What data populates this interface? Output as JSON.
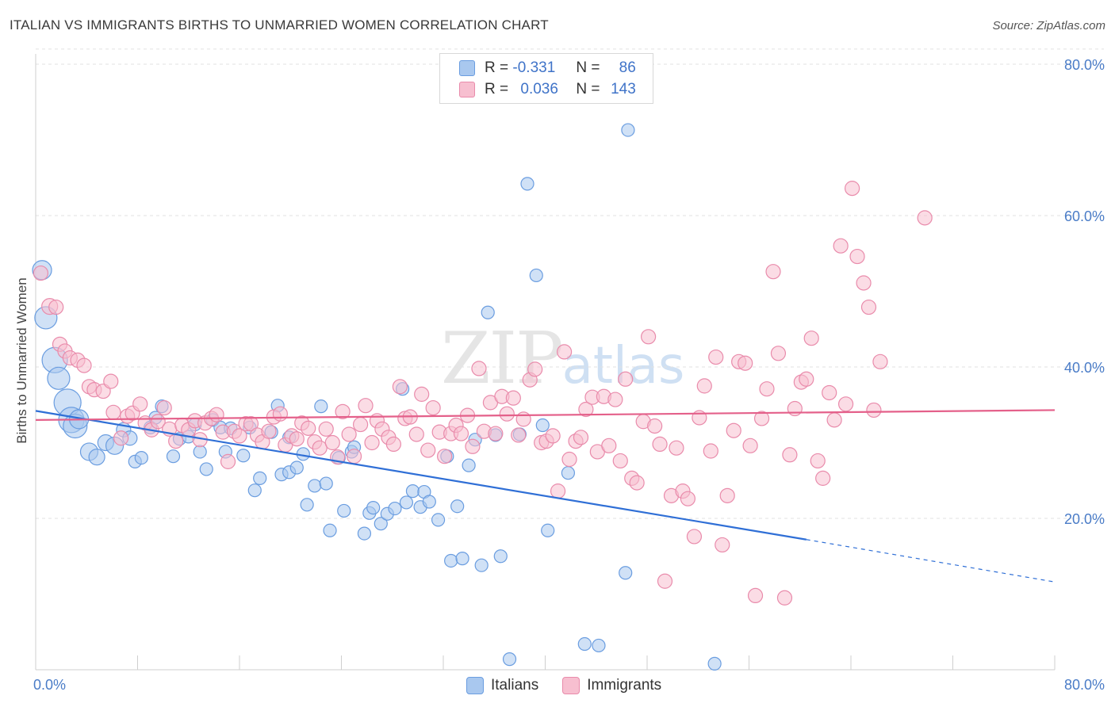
{
  "title": "ITALIAN VS IMMIGRANTS BIRTHS TO UNMARRIED WOMEN CORRELATION CHART",
  "source": "Source: ZipAtlas.com",
  "watermark": {
    "zip": "ZIP",
    "atlas": "atlas"
  },
  "legend": {
    "italians": {
      "r_label": "R =",
      "r": "-0.331",
      "n_label": "N =",
      "n": "86"
    },
    "immigrants": {
      "r_label": "R =",
      "r": "0.036",
      "n_label": "N =",
      "n": "143"
    }
  },
  "bottom_legend": {
    "italians": "Italians",
    "immigrants": "Immigrants"
  },
  "colors": {
    "blue_fill": "#a9c8ef",
    "blue_stroke": "#6a9de0",
    "blue_line": "#2f6fd6",
    "pink_fill": "#f7bfd0",
    "pink_stroke": "#e98bab",
    "pink_line": "#e4608a",
    "grid": "#e2e2e2",
    "axis_text": "#4a7cc7"
  },
  "chart_data": {
    "type": "scatter",
    "title": "ITALIAN VS IMMIGRANTS BIRTHS TO UNMARRIED WOMEN CORRELATION CHART",
    "xlabel": "",
    "ylabel": "Births to Unmarried Women",
    "xlim": [
      0,
      80
    ],
    "ylim": [
      0,
      84
    ],
    "x_ticks_labels": [
      "0.0%",
      "80.0%"
    ],
    "y_ticks": [
      20,
      40,
      60,
      80
    ],
    "y_tick_labels": [
      "20.0%",
      "40.0%",
      "60.0%",
      "80.0%"
    ],
    "grid": "dashed horizontal",
    "series": [
      {
        "name": "Italians",
        "r": -0.331,
        "n": 86,
        "trend": {
          "x0": 0,
          "y0": 34.2,
          "x1": 60.5,
          "y1": 17.2,
          "dashed_to_x": 80,
          "dashed_to_y": 11.6
        },
        "points": [
          [
            0.5,
            52.8,
            12
          ],
          [
            0.8,
            46.5,
            14
          ],
          [
            1.5,
            40.9,
            16
          ],
          [
            1.8,
            38.5,
            14
          ],
          [
            2.5,
            35.3,
            17
          ],
          [
            2.8,
            33.0,
            16
          ],
          [
            3.1,
            32.2,
            15
          ],
          [
            3.4,
            33.1,
            12
          ],
          [
            4.2,
            28.8,
            11
          ],
          [
            4.8,
            28.1,
            10
          ],
          [
            5.5,
            30.0,
            10
          ],
          [
            6.2,
            29.6,
            11
          ],
          [
            6.9,
            31.7,
            9
          ],
          [
            7.4,
            30.6,
            9
          ],
          [
            7.8,
            27.5,
            8
          ],
          [
            8.3,
            28.0,
            8
          ],
          [
            9.0,
            32.0,
            8
          ],
          [
            9.4,
            33.3,
            8
          ],
          [
            9.9,
            34.8,
            8
          ],
          [
            10.8,
            28.2,
            8
          ],
          [
            11.3,
            30.5,
            8
          ],
          [
            12.0,
            30.8,
            8
          ],
          [
            12.5,
            32.4,
            8
          ],
          [
            12.9,
            28.8,
            8
          ],
          [
            13.4,
            26.5,
            8
          ],
          [
            13.9,
            33.0,
            8
          ],
          [
            14.5,
            32.0,
            8
          ],
          [
            14.9,
            28.8,
            8
          ],
          [
            15.3,
            31.9,
            8
          ],
          [
            16.3,
            28.3,
            8
          ],
          [
            16.8,
            32.0,
            8
          ],
          [
            17.2,
            23.7,
            8
          ],
          [
            17.6,
            25.3,
            8
          ],
          [
            18.5,
            31.4,
            8
          ],
          [
            19.0,
            34.9,
            8
          ],
          [
            19.3,
            25.8,
            8
          ],
          [
            19.9,
            26.1,
            8
          ],
          [
            19.9,
            30.7,
            8
          ],
          [
            20.5,
            26.7,
            8
          ],
          [
            21.0,
            28.5,
            8
          ],
          [
            21.3,
            21.8,
            8
          ],
          [
            21.9,
            24.3,
            8
          ],
          [
            22.4,
            34.8,
            8
          ],
          [
            22.8,
            24.6,
            8
          ],
          [
            23.1,
            18.4,
            8
          ],
          [
            23.8,
            28.0,
            8
          ],
          [
            24.2,
            21.0,
            8
          ],
          [
            24.8,
            28.8,
            8
          ],
          [
            25.0,
            29.4,
            8
          ],
          [
            25.8,
            18.0,
            8
          ],
          [
            26.2,
            20.7,
            8
          ],
          [
            26.5,
            21.4,
            8
          ],
          [
            27.1,
            19.3,
            8
          ],
          [
            27.6,
            20.6,
            8
          ],
          [
            28.2,
            21.3,
            8
          ],
          [
            28.8,
            37.1,
            8
          ],
          [
            29.1,
            22.1,
            8
          ],
          [
            29.6,
            23.6,
            8
          ],
          [
            30.2,
            21.5,
            8
          ],
          [
            30.5,
            23.5,
            8
          ],
          [
            30.9,
            22.2,
            8
          ],
          [
            31.6,
            19.8,
            8
          ],
          [
            32.3,
            28.2,
            8
          ],
          [
            32.6,
            14.4,
            8
          ],
          [
            33.1,
            21.6,
            8
          ],
          [
            33.5,
            14.7,
            8
          ],
          [
            34.0,
            27.0,
            8
          ],
          [
            34.5,
            30.4,
            8
          ],
          [
            35.0,
            13.8,
            8
          ],
          [
            35.5,
            47.2,
            8
          ],
          [
            36.1,
            31.0,
            8
          ],
          [
            36.5,
            15.0,
            8
          ],
          [
            37.2,
            1.4,
            8
          ],
          [
            38.0,
            31.1,
            8
          ],
          [
            38.6,
            64.2,
            8
          ],
          [
            39.3,
            52.1,
            8
          ],
          [
            39.8,
            32.3,
            8
          ],
          [
            40.2,
            18.4,
            8
          ],
          [
            41.8,
            26.0,
            8
          ],
          [
            43.1,
            3.4,
            8
          ],
          [
            44.2,
            3.2,
            8
          ],
          [
            46.3,
            12.8,
            8
          ],
          [
            46.5,
            71.3,
            8
          ],
          [
            53.3,
            0.8,
            8
          ]
        ]
      },
      {
        "name": "Immigrants",
        "r": 0.036,
        "n": 143,
        "trend": {
          "x0": 0,
          "y0": 33.0,
          "x1": 80,
          "y1": 34.3
        },
        "points": [
          [
            0.4,
            52.4,
            9
          ],
          [
            1.1,
            48.0,
            10
          ],
          [
            1.6,
            47.9,
            9
          ],
          [
            1.9,
            43.0,
            9
          ],
          [
            2.3,
            42.1,
            9
          ],
          [
            2.7,
            41.2,
            9
          ],
          [
            3.3,
            40.9,
            9
          ],
          [
            3.8,
            40.2,
            9
          ],
          [
            4.2,
            37.4,
            9
          ],
          [
            4.6,
            37.0,
            9
          ],
          [
            5.3,
            36.8,
            9
          ],
          [
            5.9,
            38.1,
            9
          ],
          [
            6.1,
            34.0,
            9
          ],
          [
            6.7,
            30.6,
            9
          ],
          [
            7.2,
            33.5,
            9
          ],
          [
            7.6,
            33.9,
            9
          ],
          [
            8.2,
            35.1,
            9
          ],
          [
            8.6,
            32.6,
            9
          ],
          [
            9.1,
            31.7,
            9
          ],
          [
            9.6,
            32.8,
            9
          ],
          [
            10.1,
            34.6,
            9
          ],
          [
            10.5,
            31.8,
            9
          ],
          [
            11.0,
            30.2,
            9
          ],
          [
            11.5,
            32.3,
            9
          ],
          [
            12.0,
            31.7,
            9
          ],
          [
            12.5,
            32.9,
            9
          ],
          [
            12.9,
            30.4,
            9
          ],
          [
            13.3,
            32.6,
            9
          ],
          [
            13.8,
            33.2,
            9
          ],
          [
            14.2,
            33.7,
            9
          ],
          [
            14.7,
            31.4,
            9
          ],
          [
            15.1,
            27.5,
            9
          ],
          [
            15.6,
            31.5,
            9
          ],
          [
            16.0,
            30.9,
            9
          ],
          [
            16.5,
            32.5,
            9
          ],
          [
            16.9,
            32.5,
            9
          ],
          [
            17.4,
            31.0,
            9
          ],
          [
            17.8,
            30.1,
            9
          ],
          [
            18.3,
            31.5,
            9
          ],
          [
            18.7,
            33.4,
            9
          ],
          [
            19.2,
            33.8,
            9
          ],
          [
            19.6,
            29.7,
            9
          ],
          [
            20.1,
            30.9,
            9
          ],
          [
            20.5,
            30.5,
            9
          ],
          [
            20.9,
            32.6,
            9
          ],
          [
            21.4,
            31.9,
            9
          ],
          [
            21.9,
            30.1,
            9
          ],
          [
            22.3,
            29.3,
            9
          ],
          [
            22.8,
            31.8,
            9
          ],
          [
            23.3,
            30.0,
            9
          ],
          [
            23.7,
            28.1,
            9
          ],
          [
            24.1,
            34.1,
            9
          ],
          [
            24.6,
            31.1,
            9
          ],
          [
            25.0,
            28.2,
            9
          ],
          [
            25.5,
            32.4,
            9
          ],
          [
            25.9,
            34.9,
            9
          ],
          [
            26.4,
            30.0,
            9
          ],
          [
            26.8,
            32.9,
            9
          ],
          [
            27.2,
            31.8,
            9
          ],
          [
            27.7,
            30.7,
            9
          ],
          [
            28.1,
            29.8,
            9
          ],
          [
            28.6,
            37.4,
            9
          ],
          [
            29.0,
            33.2,
            9
          ],
          [
            29.4,
            33.4,
            9
          ],
          [
            29.9,
            31.1,
            9
          ],
          [
            30.3,
            36.4,
            9
          ],
          [
            30.8,
            29.0,
            9
          ],
          [
            31.2,
            34.6,
            9
          ],
          [
            31.7,
            31.4,
            9
          ],
          [
            32.1,
            28.2,
            9
          ],
          [
            32.6,
            31.2,
            9
          ],
          [
            33.0,
            32.3,
            9
          ],
          [
            33.4,
            31.2,
            9
          ],
          [
            33.9,
            33.6,
            9
          ],
          [
            34.3,
            29.5,
            9
          ],
          [
            34.8,
            39.8,
            9
          ],
          [
            35.2,
            31.5,
            9
          ],
          [
            35.7,
            35.3,
            9
          ],
          [
            36.1,
            31.2,
            9
          ],
          [
            36.6,
            36.1,
            9
          ],
          [
            37.0,
            33.8,
            9
          ],
          [
            37.5,
            35.9,
            9
          ],
          [
            37.9,
            31.0,
            9
          ],
          [
            38.3,
            33.1,
            9
          ],
          [
            38.8,
            38.3,
            9
          ],
          [
            39.2,
            39.7,
            9
          ],
          [
            39.7,
            30.0,
            9
          ],
          [
            40.1,
            30.2,
            9
          ],
          [
            40.6,
            30.9,
            9
          ],
          [
            41.0,
            23.6,
            9
          ],
          [
            41.5,
            42.0,
            9
          ],
          [
            41.9,
            27.8,
            9
          ],
          [
            42.4,
            30.2,
            9
          ],
          [
            42.8,
            30.7,
            9
          ],
          [
            43.2,
            34.4,
            9
          ],
          [
            43.7,
            36.0,
            9
          ],
          [
            44.1,
            28.8,
            9
          ],
          [
            44.6,
            36.1,
            9
          ],
          [
            45.0,
            29.6,
            9
          ],
          [
            45.5,
            35.7,
            9
          ],
          [
            45.9,
            27.6,
            9
          ],
          [
            46.3,
            38.4,
            9
          ],
          [
            46.8,
            25.3,
            9
          ],
          [
            47.2,
            24.7,
            9
          ],
          [
            47.7,
            32.8,
            9
          ],
          [
            48.1,
            44.0,
            9
          ],
          [
            48.6,
            32.2,
            9
          ],
          [
            49.0,
            29.8,
            9
          ],
          [
            49.4,
            11.7,
            9
          ],
          [
            49.9,
            23.0,
            9
          ],
          [
            50.3,
            29.3,
            9
          ],
          [
            50.8,
            23.6,
            9
          ],
          [
            51.2,
            22.6,
            9
          ],
          [
            51.7,
            17.6,
            9
          ],
          [
            52.1,
            33.3,
            9
          ],
          [
            52.5,
            37.5,
            9
          ],
          [
            53.0,
            28.9,
            9
          ],
          [
            53.4,
            41.3,
            9
          ],
          [
            53.9,
            16.5,
            9
          ],
          [
            54.3,
            23.0,
            9
          ],
          [
            54.8,
            31.6,
            9
          ],
          [
            55.2,
            40.7,
            9
          ],
          [
            55.7,
            40.5,
            9
          ],
          [
            56.1,
            29.6,
            9
          ],
          [
            56.5,
            9.8,
            9
          ],
          [
            57.0,
            33.2,
            9
          ],
          [
            57.4,
            37.1,
            9
          ],
          [
            57.9,
            52.6,
            9
          ],
          [
            58.3,
            41.8,
            9
          ],
          [
            58.8,
            9.5,
            9
          ],
          [
            59.2,
            28.4,
            9
          ],
          [
            59.6,
            34.5,
            9
          ],
          [
            60.1,
            38.0,
            9
          ],
          [
            60.5,
            38.4,
            9
          ],
          [
            60.9,
            43.8,
            9
          ],
          [
            61.4,
            27.6,
            9
          ],
          [
            61.8,
            25.3,
            9
          ],
          [
            62.3,
            36.6,
            9
          ],
          [
            62.7,
            33.0,
            9
          ],
          [
            63.2,
            56.0,
            9
          ],
          [
            63.6,
            35.1,
            9
          ],
          [
            64.1,
            63.6,
            9
          ],
          [
            64.5,
            54.6,
            9
          ],
          [
            65.0,
            51.1,
            9
          ],
          [
            65.4,
            47.9,
            9
          ],
          [
            65.8,
            34.3,
            9
          ],
          [
            66.3,
            40.7,
            9
          ],
          [
            69.8,
            59.7,
            9
          ]
        ]
      }
    ]
  }
}
